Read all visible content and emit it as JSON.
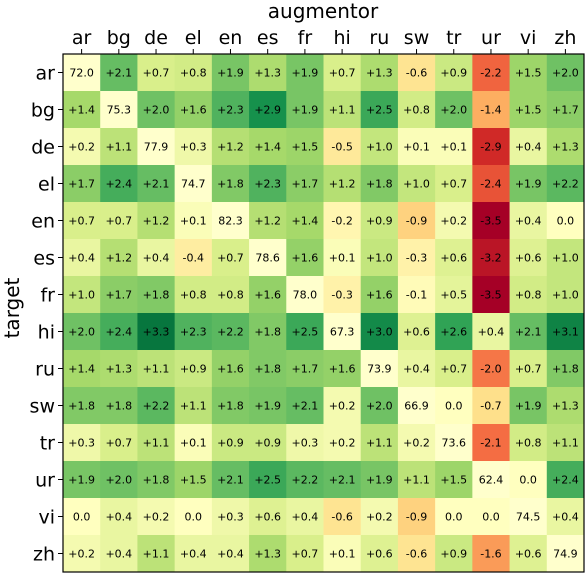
{
  "chart_data": {
    "type": "heatmap",
    "xlabel": "augmentor",
    "ylabel": "target",
    "x_labels": [
      "ar",
      "bg",
      "de",
      "el",
      "en",
      "es",
      "fr",
      "hi",
      "ru",
      "sw",
      "tr",
      "ur",
      "vi",
      "zh"
    ],
    "y_labels": [
      "ar",
      "bg",
      "de",
      "el",
      "en",
      "es",
      "fr",
      "hi",
      "ru",
      "sw",
      "tr",
      "ur",
      "vi",
      "zh"
    ],
    "cells": [
      [
        "72.0",
        "+2.1",
        "+0.7",
        "+0.8",
        "+1.9",
        "+1.3",
        "+1.9",
        "+0.7",
        "+1.3",
        "-0.6",
        "+0.9",
        "-2.2",
        "+1.5",
        "+2.0"
      ],
      [
        "+1.4",
        "75.3",
        "+2.0",
        "+1.6",
        "+2.3",
        "+2.9",
        "+1.9",
        "+1.1",
        "+2.5",
        "+0.8",
        "+2.0",
        "-1.4",
        "+1.5",
        "+1.7"
      ],
      [
        "+0.2",
        "+1.1",
        "77.9",
        "+0.3",
        "+1.2",
        "+1.4",
        "+1.5",
        "-0.5",
        "+1.0",
        "+0.1",
        "+0.1",
        "-2.9",
        "+0.4",
        "+1.3"
      ],
      [
        "+1.7",
        "+2.4",
        "+2.1",
        "74.7",
        "+1.8",
        "+2.3",
        "+1.7",
        "+1.2",
        "+1.8",
        "+1.0",
        "+0.7",
        "-2.4",
        "+1.9",
        "+2.2"
      ],
      [
        "+0.7",
        "+0.7",
        "+1.2",
        "+0.1",
        "82.3",
        "+1.2",
        "+1.4",
        "-0.2",
        "+0.9",
        "-0.9",
        "+0.2",
        "-3.5",
        "+0.4",
        "0.0"
      ],
      [
        "+0.4",
        "+1.2",
        "+0.4",
        "-0.4",
        "+0.7",
        "78.6",
        "+1.6",
        "+0.1",
        "+1.0",
        "-0.3",
        "+0.6",
        "-3.2",
        "+0.6",
        "+1.0"
      ],
      [
        "+1.0",
        "+1.7",
        "+1.8",
        "+0.8",
        "+0.8",
        "+1.6",
        "78.0",
        "-0.3",
        "+1.6",
        "-0.1",
        "+0.5",
        "-3.5",
        "+0.8",
        "+1.0"
      ],
      [
        "+2.0",
        "+2.4",
        "+3.3",
        "+2.3",
        "+2.2",
        "+1.8",
        "+2.5",
        "67.3",
        "+3.0",
        "+0.6",
        "+2.6",
        "+0.4",
        "+2.1",
        "+3.1"
      ],
      [
        "+1.4",
        "+1.3",
        "+1.1",
        "+0.9",
        "+1.6",
        "+1.8",
        "+1.7",
        "+1.6",
        "73.9",
        "+0.4",
        "+0.7",
        "-2.0",
        "+0.7",
        "+1.8"
      ],
      [
        "+1.8",
        "+1.8",
        "+2.2",
        "+1.1",
        "+1.8",
        "+1.9",
        "+2.1",
        "+0.2",
        "+2.0",
        "66.9",
        "0.0",
        "-0.7",
        "+1.9",
        "+1.3"
      ],
      [
        "+0.3",
        "+0.7",
        "+1.1",
        "+0.1",
        "+0.9",
        "+0.9",
        "+0.3",
        "+0.2",
        "+1.1",
        "+0.2",
        "73.6",
        "-2.1",
        "+0.8",
        "+1.1"
      ],
      [
        "+1.9",
        "+2.0",
        "+1.8",
        "+1.5",
        "+2.1",
        "+2.5",
        "+2.2",
        "+2.1",
        "+1.9",
        "+1.1",
        "+1.5",
        "62.4",
        "0.0",
        "+2.4"
      ],
      [
        "0.0",
        "+0.4",
        "+0.2",
        "0.0",
        "+0.3",
        "+0.6",
        "+0.4",
        "-0.6",
        "+0.2",
        "-0.9",
        "0.0",
        "0.0",
        "74.5",
        "+0.4"
      ],
      [
        "+0.2",
        "+0.4",
        "+1.1",
        "+0.4",
        "+0.4",
        "+1.3",
        "+0.7",
        "+0.1",
        "+0.6",
        "-0.6",
        "+0.9",
        "-1.6",
        "+0.6",
        "74.9"
      ]
    ],
    "colormap": "RdYlGn",
    "color_range": [
      -3.5,
      3.5
    ],
    "diagonal_color": "#ffffcc",
    "grid": false
  }
}
